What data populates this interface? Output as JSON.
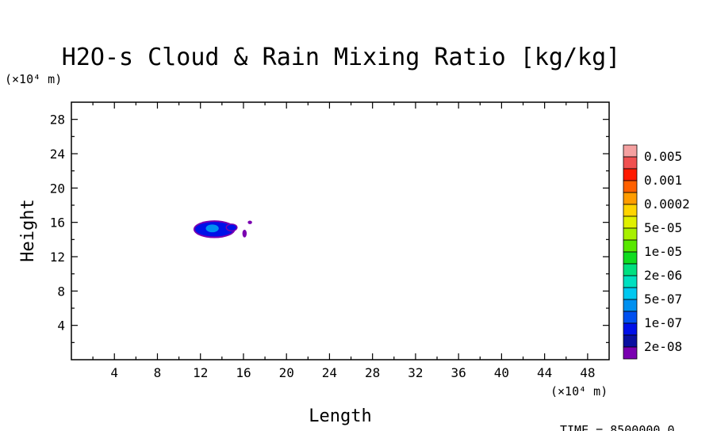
{
  "chart_data": {
    "type": "heatmap",
    "title": "H2O-s Cloud & Rain Mixing Ratio [kg/kg]",
    "xlabel": "Length",
    "ylabel": "Height",
    "x_unit": "(×10⁴ m)",
    "y_unit": "(×10⁴ m)",
    "xlim": [
      0,
      50
    ],
    "ylim": [
      0,
      30
    ],
    "xticks": [
      4,
      8,
      12,
      16,
      20,
      24,
      28,
      32,
      36,
      40,
      44,
      48
    ],
    "yticks": [
      4,
      8,
      12,
      16,
      20,
      24,
      28
    ],
    "colorbar": {
      "labels": [
        "0.005",
        "0.001",
        "0.0002",
        "5e-05",
        "1e-05",
        "2e-06",
        "5e-07",
        "1e-07",
        "2e-08"
      ],
      "colors_top_to_bottom": [
        "#f4a0a0",
        "#f05050",
        "#ff1a00",
        "#ff6000",
        "#ff9c00",
        "#ffd400",
        "#e0f000",
        "#a8f000",
        "#58e800",
        "#10dc20",
        "#00e080",
        "#00e0c0",
        "#00c8f0",
        "#0090f0",
        "#0050f0",
        "#0010e8",
        "#0a10a0",
        "#7a00b0"
      ]
    },
    "features": [
      {
        "name": "main-cloud",
        "x": 13.3,
        "y": 15.2,
        "width_x": 3.6,
        "height_y": 1.7,
        "level": "1e-07"
      },
      {
        "name": "cloud-core",
        "x": 13.1,
        "y": 15.3,
        "width_x": 1.2,
        "height_y": 0.9,
        "level": "5e-07"
      },
      {
        "name": "small-cell",
        "x": 16.1,
        "y": 14.7,
        "width_x": 0.4,
        "height_y": 0.9,
        "level": "2e-08"
      },
      {
        "name": "small-cell",
        "x": 16.6,
        "y": 16.0,
        "width_x": 0.4,
        "height_y": 0.4,
        "level": "2e-08"
      }
    ],
    "footer": "TIME = 8500000.0"
  }
}
